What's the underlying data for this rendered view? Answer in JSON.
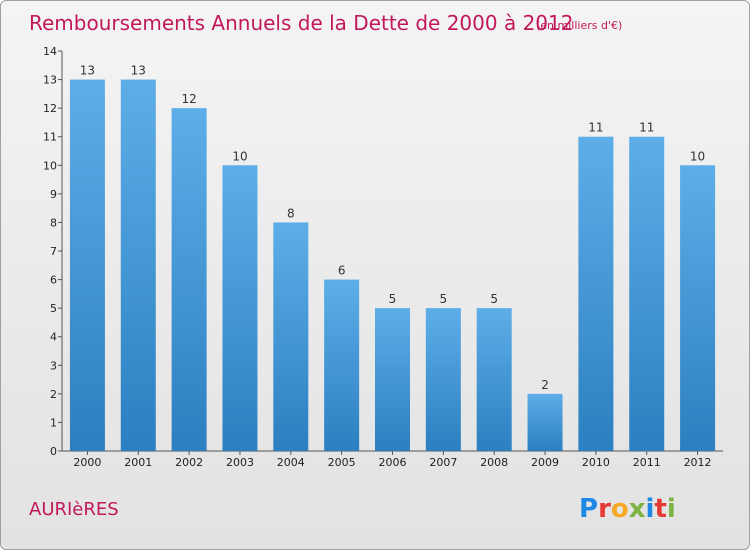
{
  "title": "Remboursements Annuels de la Dette de 2000 à 2012",
  "subtitle": "(en milliers d'€)",
  "location": "AURIèRES",
  "logo": {
    "letters": [
      "P",
      "r",
      "o",
      "x",
      "i",
      "t",
      "i"
    ],
    "colors": [
      "#1e88e5",
      "#e53935",
      "#f9a825",
      "#7cb342",
      "#1e88e5",
      "#e53935",
      "#7cb342"
    ]
  },
  "colors": {
    "bar_top": "#5daee8",
    "bar_bottom": "#2c7fc0",
    "title": "#c2185b"
  },
  "chart_data": {
    "type": "bar",
    "categories": [
      "2000",
      "2001",
      "2002",
      "2003",
      "2004",
      "2005",
      "2006",
      "2007",
      "2008",
      "2009",
      "2010",
      "2011",
      "2012"
    ],
    "values": [
      13,
      13,
      12,
      10,
      8,
      6,
      5,
      5,
      5,
      2,
      11,
      11,
      10
    ],
    "data_labels": [
      "13",
      "13",
      "12",
      "10",
      "8",
      "6",
      "5",
      "5",
      "5",
      "2",
      "11",
      "11",
      "10"
    ],
    "title": "Remboursements Annuels de la Dette de 2000 à 2012",
    "xlabel": "",
    "ylabel": "",
    "ylim": [
      0,
      14
    ],
    "yticks": [
      "0",
      "1",
      "2",
      "3",
      "4",
      "5",
      "6",
      "7",
      "8",
      "9",
      "10",
      "11",
      "12",
      "13",
      "14"
    ],
    "grid": false,
    "legend": "none"
  }
}
